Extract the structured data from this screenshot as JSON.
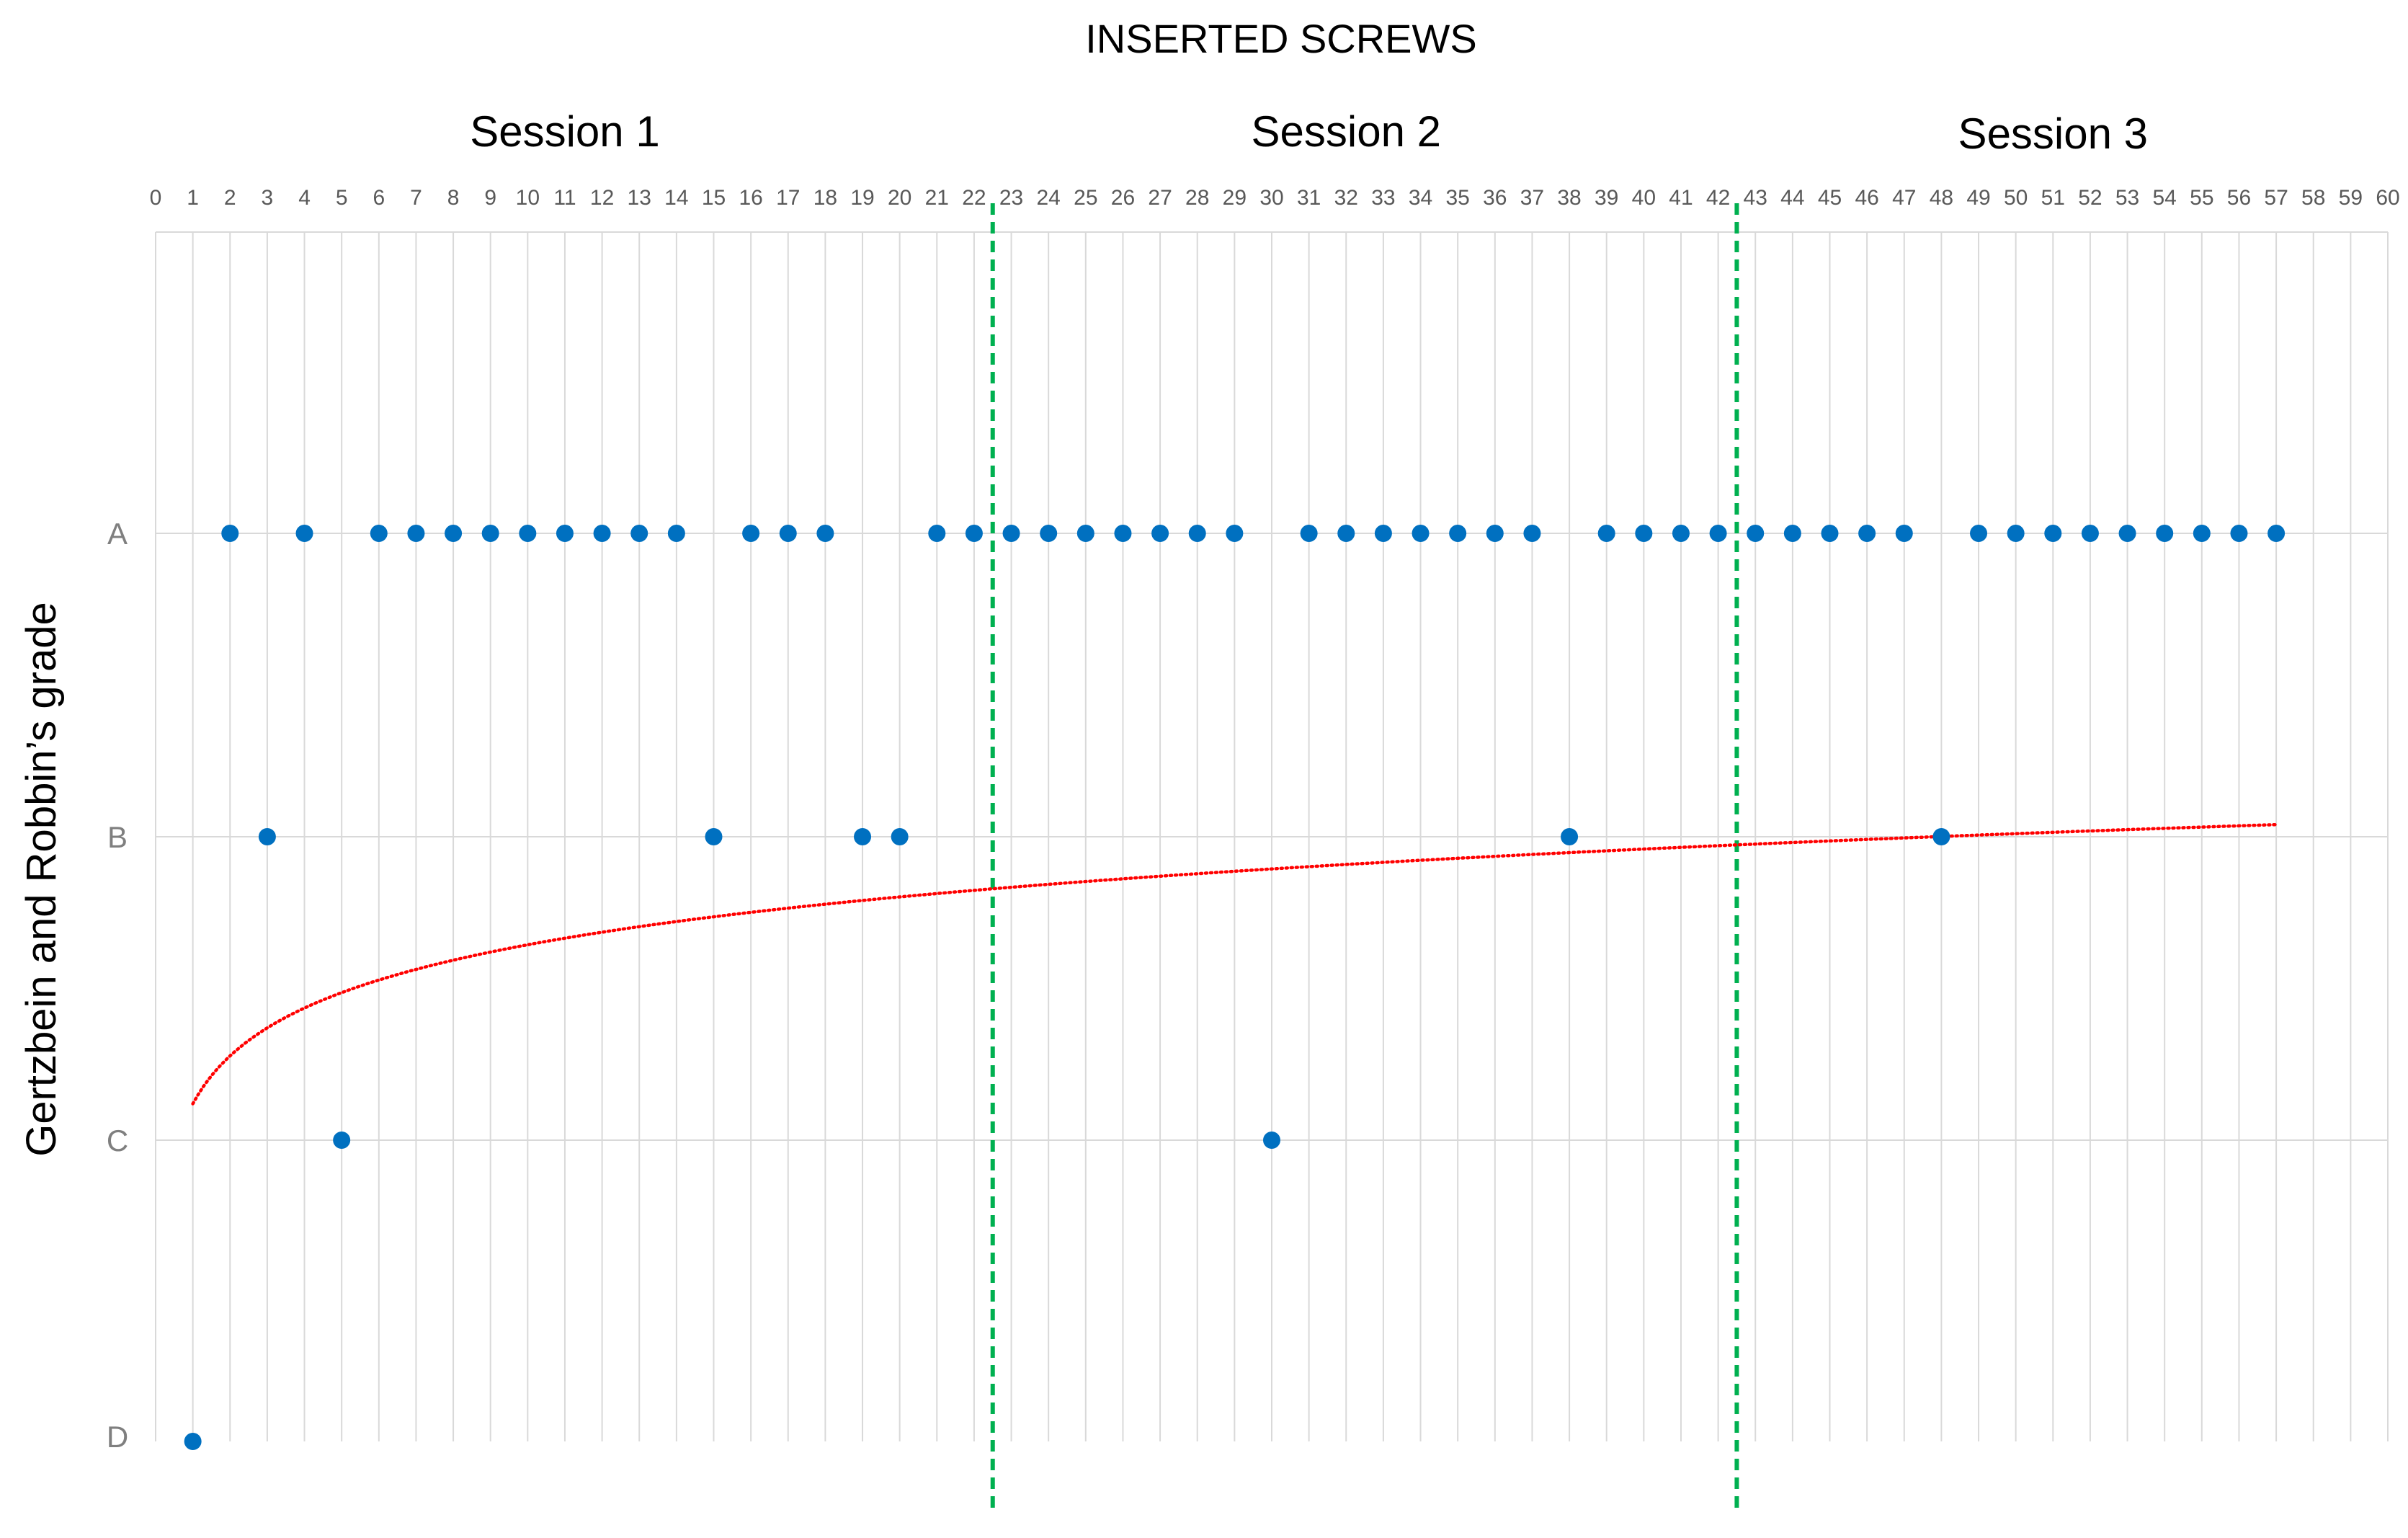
{
  "chart_data": {
    "type": "scatter",
    "title": "INSERTED SCREWS",
    "xlabel": "",
    "ylabel": "Gertzbein and Robbin’s grade",
    "xlim": [
      0,
      60
    ],
    "x_ticks": [
      0,
      1,
      2,
      3,
      4,
      5,
      6,
      7,
      8,
      9,
      10,
      11,
      12,
      13,
      14,
      15,
      16,
      17,
      18,
      19,
      20,
      21,
      22,
      23,
      24,
      25,
      26,
      27,
      28,
      29,
      30,
      31,
      32,
      33,
      34,
      35,
      36,
      37,
      38,
      39,
      40,
      41,
      42,
      43,
      44,
      45,
      46,
      47,
      48,
      49,
      50,
      51,
      52,
      53,
      54,
      55,
      56,
      57,
      58,
      59,
      60
    ],
    "x_tick_position": "top",
    "y_categories": [
      "A",
      "B",
      "C",
      "D"
    ],
    "grid": true,
    "sessions": [
      {
        "label": "Session 1",
        "x_center": 11
      },
      {
        "label": "Session 2",
        "x_center": 32
      },
      {
        "label": "Session 3",
        "x_center": 51
      }
    ],
    "session_dividers_x": [
      22.5,
      42.5
    ],
    "points": [
      {
        "x": 1,
        "y": "D"
      },
      {
        "x": 2,
        "y": "A"
      },
      {
        "x": 3,
        "y": "B"
      },
      {
        "x": 4,
        "y": "A"
      },
      {
        "x": 5,
        "y": "C"
      },
      {
        "x": 6,
        "y": "A"
      },
      {
        "x": 7,
        "y": "A"
      },
      {
        "x": 8,
        "y": "A"
      },
      {
        "x": 9,
        "y": "A"
      },
      {
        "x": 10,
        "y": "A"
      },
      {
        "x": 11,
        "y": "A"
      },
      {
        "x": 12,
        "y": "A"
      },
      {
        "x": 13,
        "y": "A"
      },
      {
        "x": 14,
        "y": "A"
      },
      {
        "x": 15,
        "y": "B"
      },
      {
        "x": 16,
        "y": "A"
      },
      {
        "x": 17,
        "y": "A"
      },
      {
        "x": 18,
        "y": "A"
      },
      {
        "x": 19,
        "y": "B"
      },
      {
        "x": 20,
        "y": "B"
      },
      {
        "x": 21,
        "y": "A"
      },
      {
        "x": 22,
        "y": "A"
      },
      {
        "x": 23,
        "y": "A"
      },
      {
        "x": 24,
        "y": "A"
      },
      {
        "x": 25,
        "y": "A"
      },
      {
        "x": 26,
        "y": "A"
      },
      {
        "x": 27,
        "y": "A"
      },
      {
        "x": 28,
        "y": "A"
      },
      {
        "x": 29,
        "y": "A"
      },
      {
        "x": 30,
        "y": "C"
      },
      {
        "x": 31,
        "y": "A"
      },
      {
        "x": 32,
        "y": "A"
      },
      {
        "x": 33,
        "y": "A"
      },
      {
        "x": 34,
        "y": "A"
      },
      {
        "x": 35,
        "y": "A"
      },
      {
        "x": 36,
        "y": "A"
      },
      {
        "x": 37,
        "y": "A"
      },
      {
        "x": 38,
        "y": "B"
      },
      {
        "x": 39,
        "y": "A"
      },
      {
        "x": 40,
        "y": "A"
      },
      {
        "x": 41,
        "y": "A"
      },
      {
        "x": 42,
        "y": "A"
      },
      {
        "x": 43,
        "y": "A"
      },
      {
        "x": 44,
        "y": "A"
      },
      {
        "x": 45,
        "y": "A"
      },
      {
        "x": 46,
        "y": "A"
      },
      {
        "x": 47,
        "y": "A"
      },
      {
        "x": 48,
        "y": "B"
      },
      {
        "x": 49,
        "y": "A"
      },
      {
        "x": 50,
        "y": "A"
      },
      {
        "x": 51,
        "y": "A"
      },
      {
        "x": 52,
        "y": "A"
      },
      {
        "x": 53,
        "y": "A"
      },
      {
        "x": 54,
        "y": "A"
      },
      {
        "x": 55,
        "y": "A"
      },
      {
        "x": 56,
        "y": "A"
      },
      {
        "x": 57,
        "y": "A"
      }
    ],
    "trendline": {
      "type": "logarithmic",
      "x_range": [
        1,
        57
      ],
      "grade_at_x1": 1.88,
      "grade_at_x57": 0.96
    },
    "colors": {
      "points": "#0070C0",
      "trendline": "#FF0000",
      "dividers": "#00B050",
      "grid": "#D9D9D9"
    }
  }
}
